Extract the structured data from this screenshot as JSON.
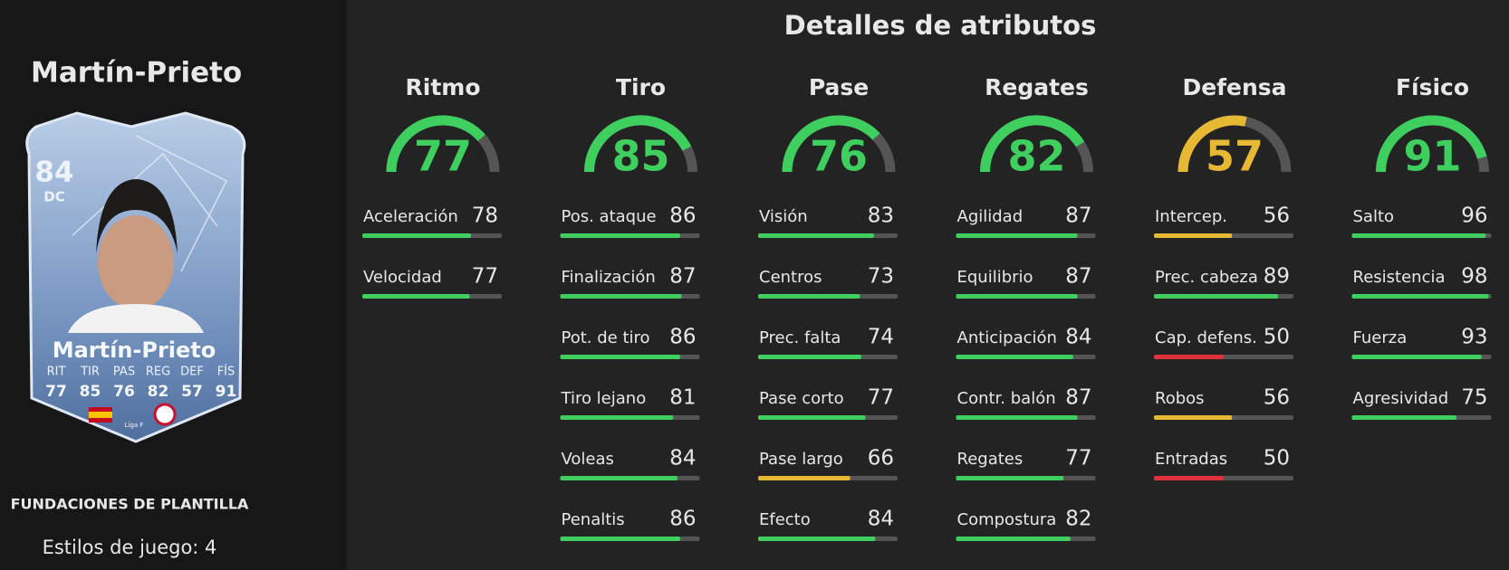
{
  "player_name": "Martín-Prieto",
  "card": {
    "rating": 84,
    "position": "DC",
    "name": "Martín-Prieto",
    "league": "Liga F",
    "stats": [
      {
        "label": "RIT",
        "value": 77
      },
      {
        "label": "TIR",
        "value": 85
      },
      {
        "label": "PAS",
        "value": 76
      },
      {
        "label": "REG",
        "value": 82
      },
      {
        "label": "DEF",
        "value": 57
      },
      {
        "label": "FÍS",
        "value": 91
      }
    ]
  },
  "squad_label": "FUNDACIONES DE PLANTILLA",
  "playstyles": "Estilos de juego: 4",
  "section_title": "Detalles de atributos",
  "categories": [
    {
      "name": "Ritmo",
      "value": 77,
      "attributes": [
        {
          "name": "Aceleración",
          "value": 78
        },
        {
          "name": "Velocidad",
          "value": 77
        }
      ]
    },
    {
      "name": "Tiro",
      "value": 85,
      "attributes": [
        {
          "name": "Pos. ataque",
          "value": 86
        },
        {
          "name": "Finalización",
          "value": 87
        },
        {
          "name": "Pot. de tiro",
          "value": 86
        },
        {
          "name": "Tiro lejano",
          "value": 81
        },
        {
          "name": "Voleas",
          "value": 84
        },
        {
          "name": "Penaltis",
          "value": 86
        }
      ]
    },
    {
      "name": "Pase",
      "value": 76,
      "attributes": [
        {
          "name": "Visión",
          "value": 83
        },
        {
          "name": "Centros",
          "value": 73
        },
        {
          "name": "Prec. falta",
          "value": 74
        },
        {
          "name": "Pase corto",
          "value": 77
        },
        {
          "name": "Pase largo",
          "value": 66
        },
        {
          "name": "Efecto",
          "value": 84
        }
      ]
    },
    {
      "name": "Regates",
      "value": 82,
      "attributes": [
        {
          "name": "Agilidad",
          "value": 87
        },
        {
          "name": "Equilibrio",
          "value": 87
        },
        {
          "name": "Anticipación",
          "value": 84
        },
        {
          "name": "Contr. balón",
          "value": 87
        },
        {
          "name": "Regates",
          "value": 77
        },
        {
          "name": "Compostura",
          "value": 82
        }
      ]
    },
    {
      "name": "Defensa",
      "value": 57,
      "attributes": [
        {
          "name": "Intercep.",
          "value": 56
        },
        {
          "name": "Prec. cabeza",
          "value": 89
        },
        {
          "name": "Cap. defens.",
          "value": 50
        },
        {
          "name": "Robos",
          "value": 56
        },
        {
          "name": "Entradas",
          "value": 50
        }
      ]
    },
    {
      "name": "Físico",
      "value": 91,
      "attributes": [
        {
          "name": "Salto",
          "value": 96
        },
        {
          "name": "Resistencia",
          "value": 98
        },
        {
          "name": "Fuerza",
          "value": 93
        },
        {
          "name": "Agresividad",
          "value": 75
        }
      ]
    }
  ]
}
